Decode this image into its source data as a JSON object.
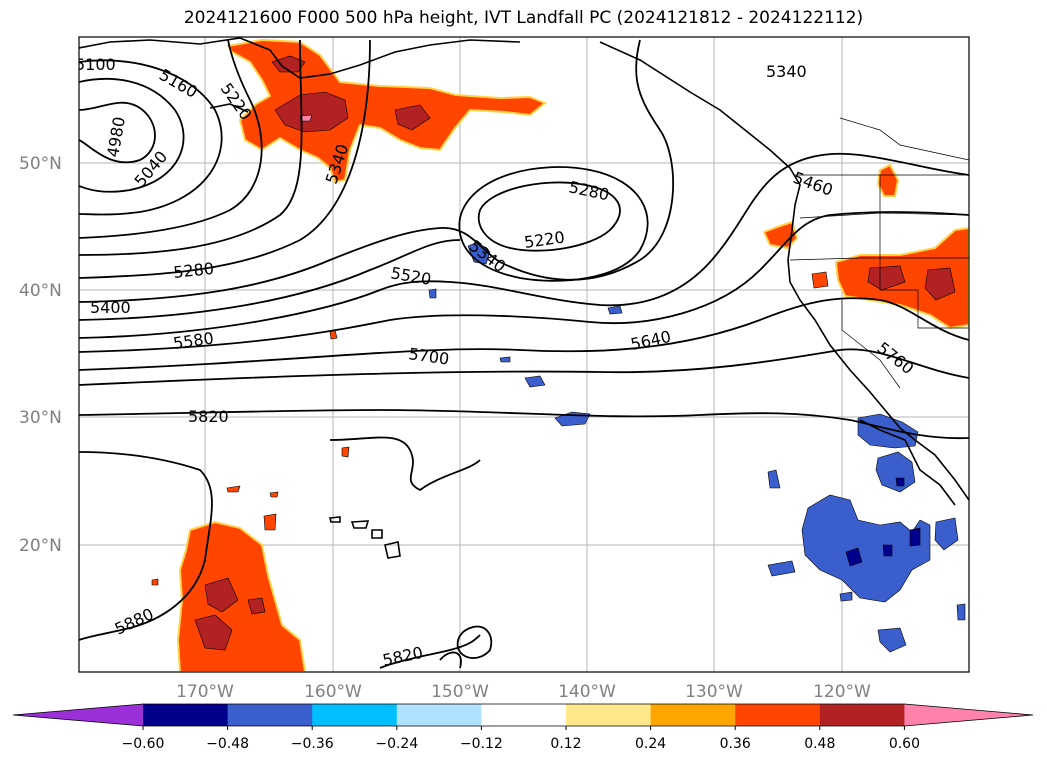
{
  "title": "2024121600 F000 500 hPa height, IVT Landfall PC (2024121812 - 2024122112)",
  "lat_labels": [
    "50°N",
    "40°N",
    "30°N",
    "20°N"
  ],
  "lon_labels": [
    "170°W",
    "160°W",
    "150°W",
    "140°W",
    "130°W",
    "120°W"
  ],
  "contour_labels": [
    "5100",
    "5160",
    "5220",
    "4980",
    "5040",
    "5340",
    "5280",
    "5220",
    "5340",
    "5280",
    "5400",
    "5520",
    "5580",
    "5700",
    "5640",
    "5760",
    "5820",
    "5880",
    "5820",
    "5340",
    "5460"
  ],
  "colorbar": {
    "ticks": [
      "−0.60",
      "−0.48",
      "−0.36",
      "−0.24",
      "−0.12",
      "0.12",
      "0.24",
      "0.36",
      "0.48",
      "0.60"
    ],
    "colors": [
      "#9b30d9",
      "#00008b",
      "#3a5fcd",
      "#00bfff",
      "#b0e2ff",
      "#ffffff",
      "#ffe98a",
      "#ffa500",
      "#ff4500",
      "#b22222",
      "#ff82ab"
    ]
  }
}
